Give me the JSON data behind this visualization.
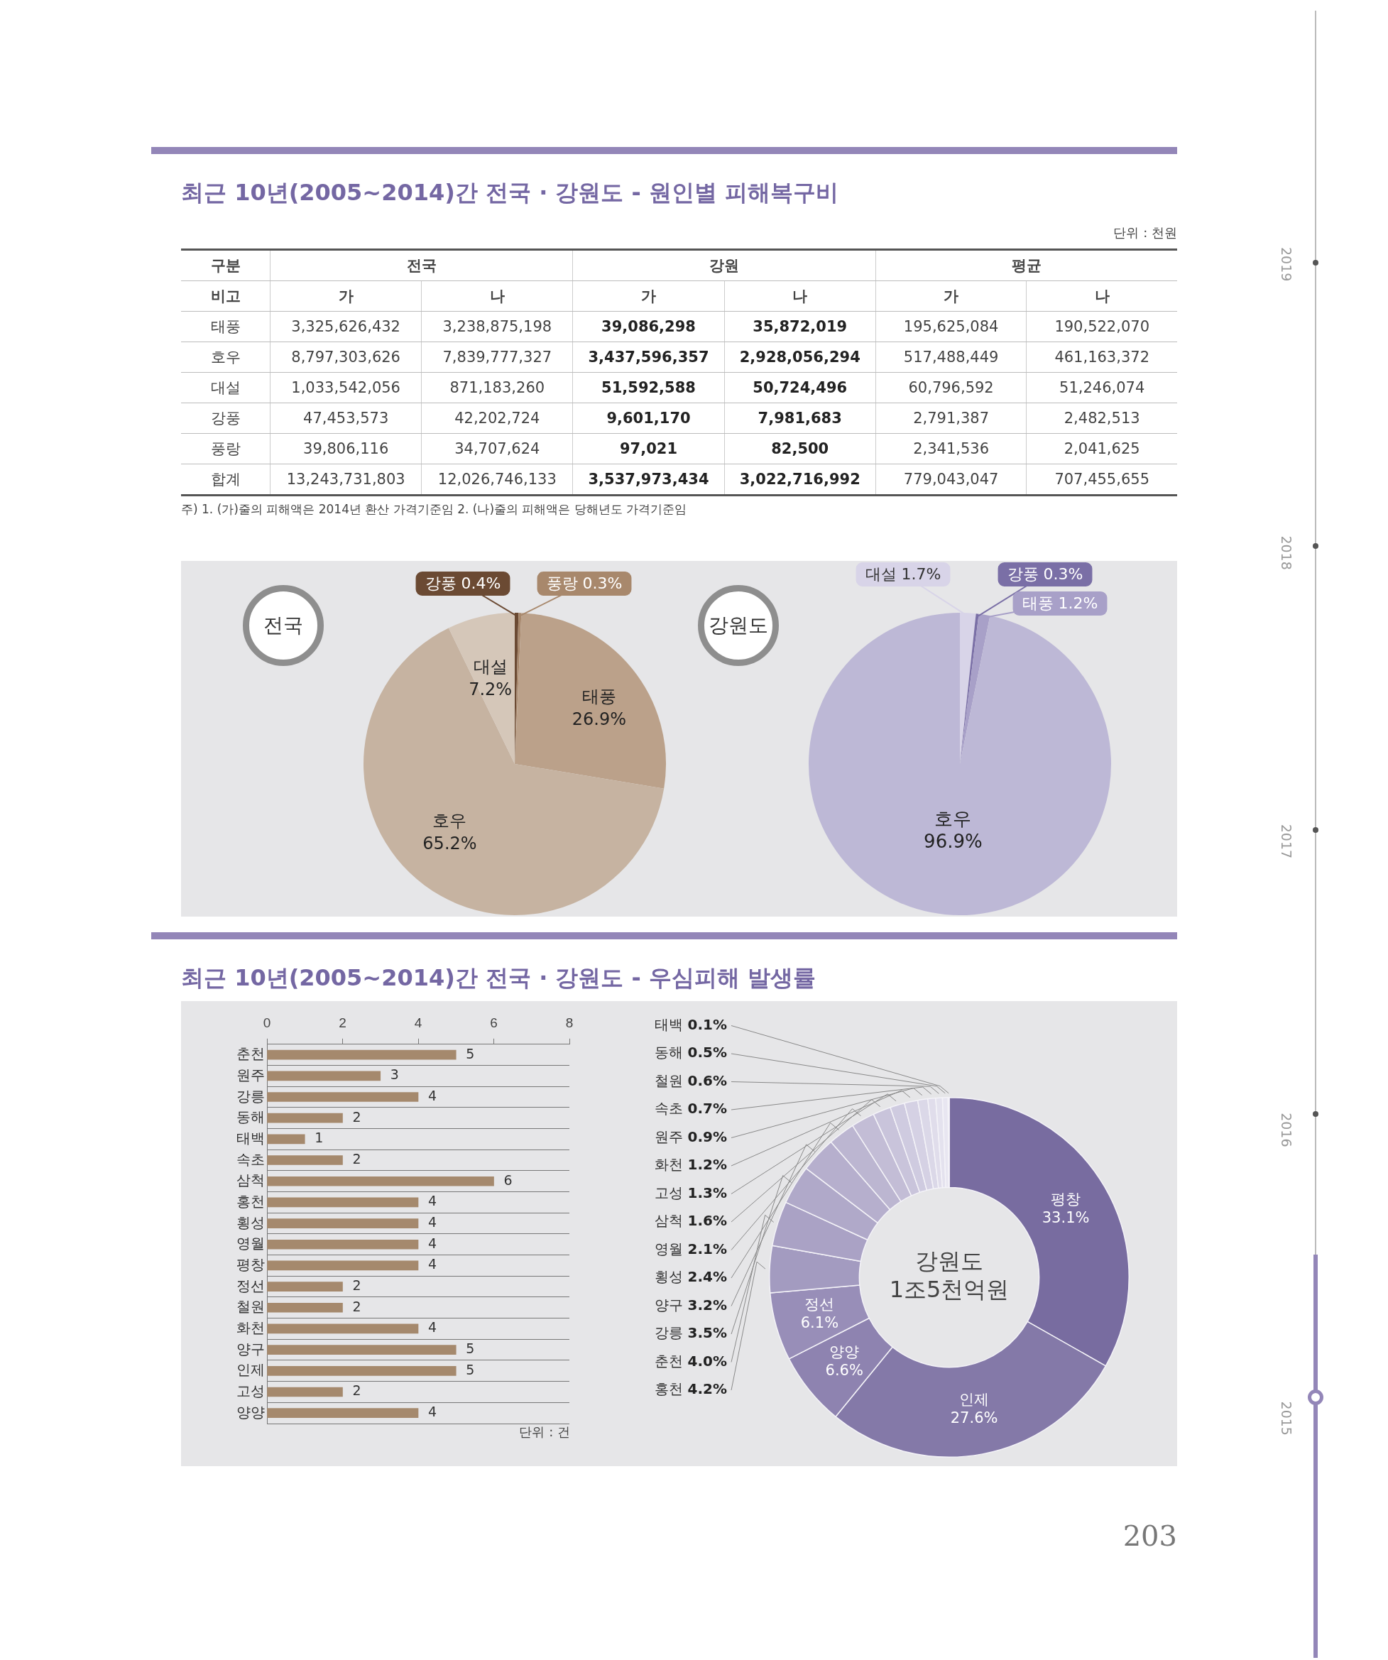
{
  "chart_data": [
    {
      "type": "other",
      "title": "최근 10년(2005~2014)간 전국 · 강원도 - 원인별 피해복구비",
      "categories": [
        "가",
        "나",
        "가",
        "나",
        "가",
        "나"
      ],
      "y_categories": [
        "태풍",
        "호우",
        "대설",
        "강풍",
        "풍랑",
        "합계"
      ],
      "cell_labels": [
        [
          "3,325,626,432",
          "3,238,875,198",
          "39,086,298",
          "35,872,019",
          "195,625,084",
          "190,522,070"
        ],
        [
          "8,797,303,626",
          "7,839,777,327",
          "3,437,596,357",
          "2,928,056,294",
          "517,488,449",
          "461,163,372"
        ],
        [
          "1,033,542,056",
          "871,183,260",
          "51,592,588",
          "50,724,496",
          "60,796,592",
          "51,246,074"
        ],
        [
          "47,453,573",
          "42,202,724",
          "9,601,170",
          "7,981,683",
          "2,791,387",
          "2,482,513"
        ],
        [
          "39,806,116",
          "34,707,624",
          "97,021",
          "82,500",
          "2,341,536",
          "2,041,625"
        ],
        [
          "13,243,731,803",
          "12,026,746,133",
          "3,537,973,434",
          "3,022,716,992",
          "779,043,047",
          "707,455,655"
        ]
      ],
      "annotations": [
        "단위 : 천원",
        "주) 1. (가)줄의 피해액은 2014년 환산 가격기준임  2. (나)줄의 피해액은 당해년도 가격기준임",
        "구분",
        "전국",
        "강원",
        "평균",
        "비고",
        "2019 2018 2017 2016 2015",
        "203"
      ]
    },
    {
      "type": "pie",
      "title": "전국",
      "categories": [
        "강풍",
        "풍랑",
        "태풍",
        "호우",
        "대설"
      ],
      "values": [
        0.4,
        0.3,
        26.9,
        65.2,
        7.2
      ],
      "value_labels": [
        "0.4%",
        "0.3%",
        "26.9%",
        "65.2%",
        "7.2%"
      ],
      "colors": [
        "#6b4a33",
        "#a8886c",
        "#bba18a",
        "#c6b3a1",
        "#d5c7b9"
      ]
    },
    {
      "type": "pie",
      "title": "강원도",
      "categories": [
        "대설",
        "강풍",
        "태풍",
        "호우"
      ],
      "values": [
        1.7,
        0.3,
        1.2,
        96.9
      ],
      "value_labels": [
        "1.7%",
        "0.3%",
        "1.2%",
        "96.9%"
      ],
      "colors": [
        "#d8d4e8",
        "#7a6fa6",
        "#a8a0c8",
        "#bdb8d6"
      ]
    },
    {
      "type": "bar",
      "orientation": "horizontal",
      "title": "최근 10년(2005~2014)간 전국 · 강원도 - 우심피해 발생률",
      "categories": [
        "춘천",
        "원주",
        "강릉",
        "동해",
        "태백",
        "속초",
        "삼척",
        "홍천",
        "횡성",
        "영월",
        "평창",
        "정선",
        "철원",
        "화천",
        "양구",
        "인제",
        "고성",
        "양양"
      ],
      "values": [
        5,
        3,
        4,
        2,
        1,
        2,
        6,
        4,
        4,
        4,
        4,
        2,
        2,
        4,
        5,
        5,
        2,
        4
      ],
      "color": "#a5896d",
      "xlim": [
        0,
        8
      ],
      "xticks": [
        0,
        2,
        4,
        6,
        8
      ],
      "grid": "y",
      "data_labels": true,
      "annotations": [
        "단위 : 건"
      ]
    },
    {
      "type": "donut",
      "categories": [
        "평창",
        "인제",
        "양양",
        "정선",
        "홍천",
        "춘천",
        "강릉",
        "양구",
        "횡성",
        "영월",
        "삼척",
        "고성",
        "화천",
        "원주",
        "속초",
        "철원",
        "동해",
        "태백"
      ],
      "values": [
        33.1,
        27.6,
        6.6,
        6.1,
        4.2,
        4.0,
        3.5,
        3.2,
        2.4,
        2.1,
        1.6,
        1.3,
        1.2,
        0.9,
        0.7,
        0.6,
        0.5,
        0.1
      ],
      "value_labels": [
        "33.1%",
        "27.6%",
        "6.6%",
        "6.1%",
        "4.2%",
        "4.0%",
        "3.5%",
        "3.2%",
        "2.4%",
        "2.1%",
        "1.6%",
        "1.3%",
        "1.2%",
        "0.9%",
        "0.7%",
        "0.6%",
        "0.5%",
        "0.1%"
      ],
      "colors": [
        "#786ca0",
        "#8479a8",
        "#8e83b0",
        "#988eb8",
        "#a39bc0",
        "#aaa2c5",
        "#b0a9c9",
        "#b6afcd",
        "#bcb6d1",
        "#c3bdd6",
        "#c9c4db",
        "#cfcbe0",
        "#d5d1e4",
        "#dbd8e8",
        "#e0ddeb",
        "#e4e2ee",
        "#e8e6f1",
        "#ecebf4"
      ],
      "annotations": [
        "강원도",
        "1조5천억원"
      ]
    }
  ]
}
